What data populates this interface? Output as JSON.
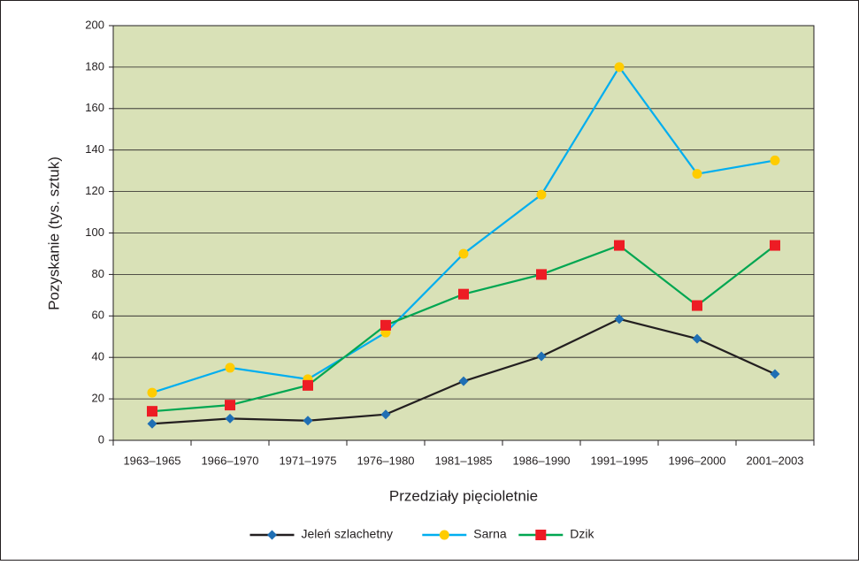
{
  "chart_data": {
    "type": "line",
    "y_label": "Pozyskanie (tys. sztuk)",
    "x_label": "Przedziały pięcioletnie",
    "categories": [
      "1963–1965",
      "1966–1970",
      "1971–1975",
      "1976–1980",
      "1981–1985",
      "1986–1990",
      "1991–1995",
      "1996–2000",
      "2001–2003"
    ],
    "series": [
      {
        "name": "Jeleń szlachetny",
        "color": "#231f20",
        "marker": "diamond",
        "marker_color": "#1f6fb4",
        "values": [
          8,
          10.5,
          9.5,
          12.5,
          28.5,
          40.5,
          58.5,
          49,
          32
        ]
      },
      {
        "name": "Sarna",
        "color": "#00aeef",
        "marker": "circle",
        "marker_color": "#ffcc00",
        "values": [
          23,
          35,
          29.5,
          52,
          90,
          118.5,
          180,
          128.5,
          135
        ]
      },
      {
        "name": "Dzik",
        "color": "#00a651",
        "marker": "square",
        "marker_color": "#ed1c24",
        "values": [
          14,
          17,
          26.5,
          55.5,
          70.5,
          80,
          94,
          65,
          94
        ]
      }
    ],
    "ylim": [
      0,
      200
    ],
    "yticks": [
      0,
      20,
      40,
      60,
      80,
      100,
      120,
      140,
      160,
      180,
      200
    ],
    "grid": true,
    "plot_background": "#d9e1b7",
    "legend": "bottom"
  }
}
